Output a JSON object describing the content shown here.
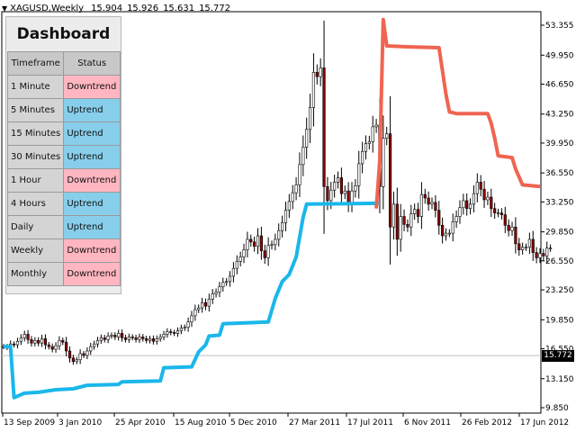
{
  "header": {
    "symbol": "XAGUSD,Weekly",
    "open": "15.904",
    "high": "15.926",
    "low": "15.631",
    "close": "15.772"
  },
  "dashboard": {
    "title": "Dashboard",
    "col_timeframe": "Timeframe",
    "col_status": "Status",
    "rows": [
      {
        "timeframe": "1 Minute",
        "status": "Downtrend"
      },
      {
        "timeframe": "5 Minutes",
        "status": "Uptrend"
      },
      {
        "timeframe": "15 Minutes",
        "status": "Uptrend"
      },
      {
        "timeframe": "30 Minutes",
        "status": "Uptrend"
      },
      {
        "timeframe": "1 Hour",
        "status": "Downtrend"
      },
      {
        "timeframe": "4 Hours",
        "status": "Uptrend"
      },
      {
        "timeframe": "Daily",
        "status": "Uptrend"
      },
      {
        "timeframe": "Weekly",
        "status": "Downtrend"
      },
      {
        "timeframe": "Monthly",
        "status": "Downtrend"
      }
    ],
    "colors": {
      "Uptrend": "#87ceeb",
      "Downtrend": "#ffb6c1"
    }
  },
  "price_tag": "15.772",
  "colors": {
    "up_line": "#1ab7ea",
    "down_line": "#f06450",
    "candle": "#000000",
    "candle_wick": "#8b0000"
  },
  "chart_data": {
    "type": "line",
    "y_ticks": [
      "53.355",
      "49.950",
      "46.650",
      "43.250",
      "39.950",
      "36.550",
      "33.250",
      "29.850",
      "26.550",
      "23.250",
      "19.850",
      "16.550",
      "13.150",
      "9.850"
    ],
    "x_ticks": [
      "13 Sep 2009",
      "3 Jan 2010",
      "25 Apr 2010",
      "15 Aug 2010",
      "5 Dec 2010",
      "27 Mar 2011",
      "17 Jul 2011",
      "6 Nov 2011",
      "26 Feb 2012",
      "17 Jun 2012"
    ],
    "ylim": [
      9.85,
      53.355
    ],
    "last_price": 15.772,
    "series": [
      {
        "name": "",
        "color": "#1ab7ea",
        "points": [
          [
            0,
            16.8
          ],
          [
            2,
            16.8
          ],
          [
            3,
            11.0
          ],
          [
            6,
            11.5
          ],
          [
            10,
            11.6
          ],
          [
            15,
            11.9
          ],
          [
            20,
            12.0
          ],
          [
            24,
            12.4
          ],
          [
            33,
            12.5
          ],
          [
            34,
            12.8
          ],
          [
            45,
            12.9
          ],
          [
            46,
            14.4
          ],
          [
            54,
            14.5
          ],
          [
            56,
            16.2
          ],
          [
            58,
            17.0
          ],
          [
            59,
            18.0
          ],
          [
            62,
            18.1
          ],
          [
            63,
            19.4
          ],
          [
            76,
            19.6
          ],
          [
            78,
            22.3
          ],
          [
            80,
            24.2
          ],
          [
            82,
            25.0
          ],
          [
            84,
            27.0
          ],
          [
            86,
            31.5
          ],
          [
            87,
            33.0
          ],
          [
            108,
            33.1
          ]
        ]
      },
      {
        "name": "",
        "color": "#f06450",
        "points": [
          [
            107,
            32.5
          ],
          [
            108,
            38.0
          ],
          [
            109,
            54.0
          ],
          [
            110,
            51.0
          ],
          [
            116,
            50.9
          ],
          [
            125,
            50.8
          ],
          [
            127,
            45.5
          ],
          [
            128,
            43.5
          ],
          [
            130,
            43.3
          ],
          [
            139,
            43.3
          ],
          [
            140,
            42.2
          ],
          [
            141,
            40.5
          ],
          [
            142,
            38.5
          ],
          [
            146,
            38.3
          ],
          [
            147,
            37.0
          ],
          [
            149,
            35.2
          ],
          [
            154,
            35.0
          ]
        ]
      }
    ],
    "candles_close": [
      16.8,
      16.7,
      17.1,
      17.0,
      17.4,
      17.8,
      18.2,
      17.6,
      17.2,
      17.5,
      17.2,
      17.7,
      17.0,
      16.8,
      16.5,
      16.9,
      17.5,
      17.3,
      16.3,
      15.5,
      15.1,
      15.3,
      16.0,
      15.8,
      16.3,
      16.8,
      17.1,
      17.5,
      17.8,
      17.6,
      18.0,
      18.1,
      17.9,
      18.3,
      17.8,
      17.6,
      17.9,
      17.8,
      17.6,
      17.9,
      17.7,
      17.5,
      17.7,
      17.4,
      17.7,
      17.9,
      18.2,
      18.5,
      18.4,
      18.3,
      18.6,
      18.9,
      19.0,
      19.6,
      20.3,
      21.0,
      21.2,
      21.8,
      21.4,
      22.2,
      22.8,
      23.0,
      23.6,
      24.1,
      24.2,
      24.8,
      25.7,
      26.5,
      27.0,
      27.8,
      29.0,
      28.7,
      28.2,
      29.4,
      27.7,
      26.9,
      28.3,
      28.4,
      29.0,
      30.0,
      30.9,
      32.3,
      33.3,
      34.3,
      35.2,
      37.5,
      39.5,
      41.5,
      44.0,
      48.0,
      47.5,
      48.5,
      35.0,
      33.4,
      34.6,
      35.5,
      36.0,
      34.2,
      34.5,
      33.1,
      34.5,
      35.1,
      37.6,
      39.0,
      39.9,
      40.1,
      41.8,
      42.0,
      35.0,
      40.5,
      41.0,
      30.4,
      33.0,
      29.0,
      31.6,
      30.7,
      30.4,
      31.9,
      32.4,
      31.6,
      34.1,
      33.7,
      33.0,
      33.2,
      32.3,
      30.6,
      29.4,
      29.7,
      29.7,
      31.0,
      31.6,
      32.6,
      33.4,
      32.5,
      33.0,
      34.2,
      35.5,
      34.7,
      33.5,
      33.8,
      32.5,
      32.0,
      32.0,
      31.8,
      30.6,
      30.0,
      30.4,
      28.5,
      27.8,
      28.1,
      28.1,
      29.0,
      27.5,
      26.9,
      27.4,
      27.1,
      28.0,
      28.0
    ]
  }
}
